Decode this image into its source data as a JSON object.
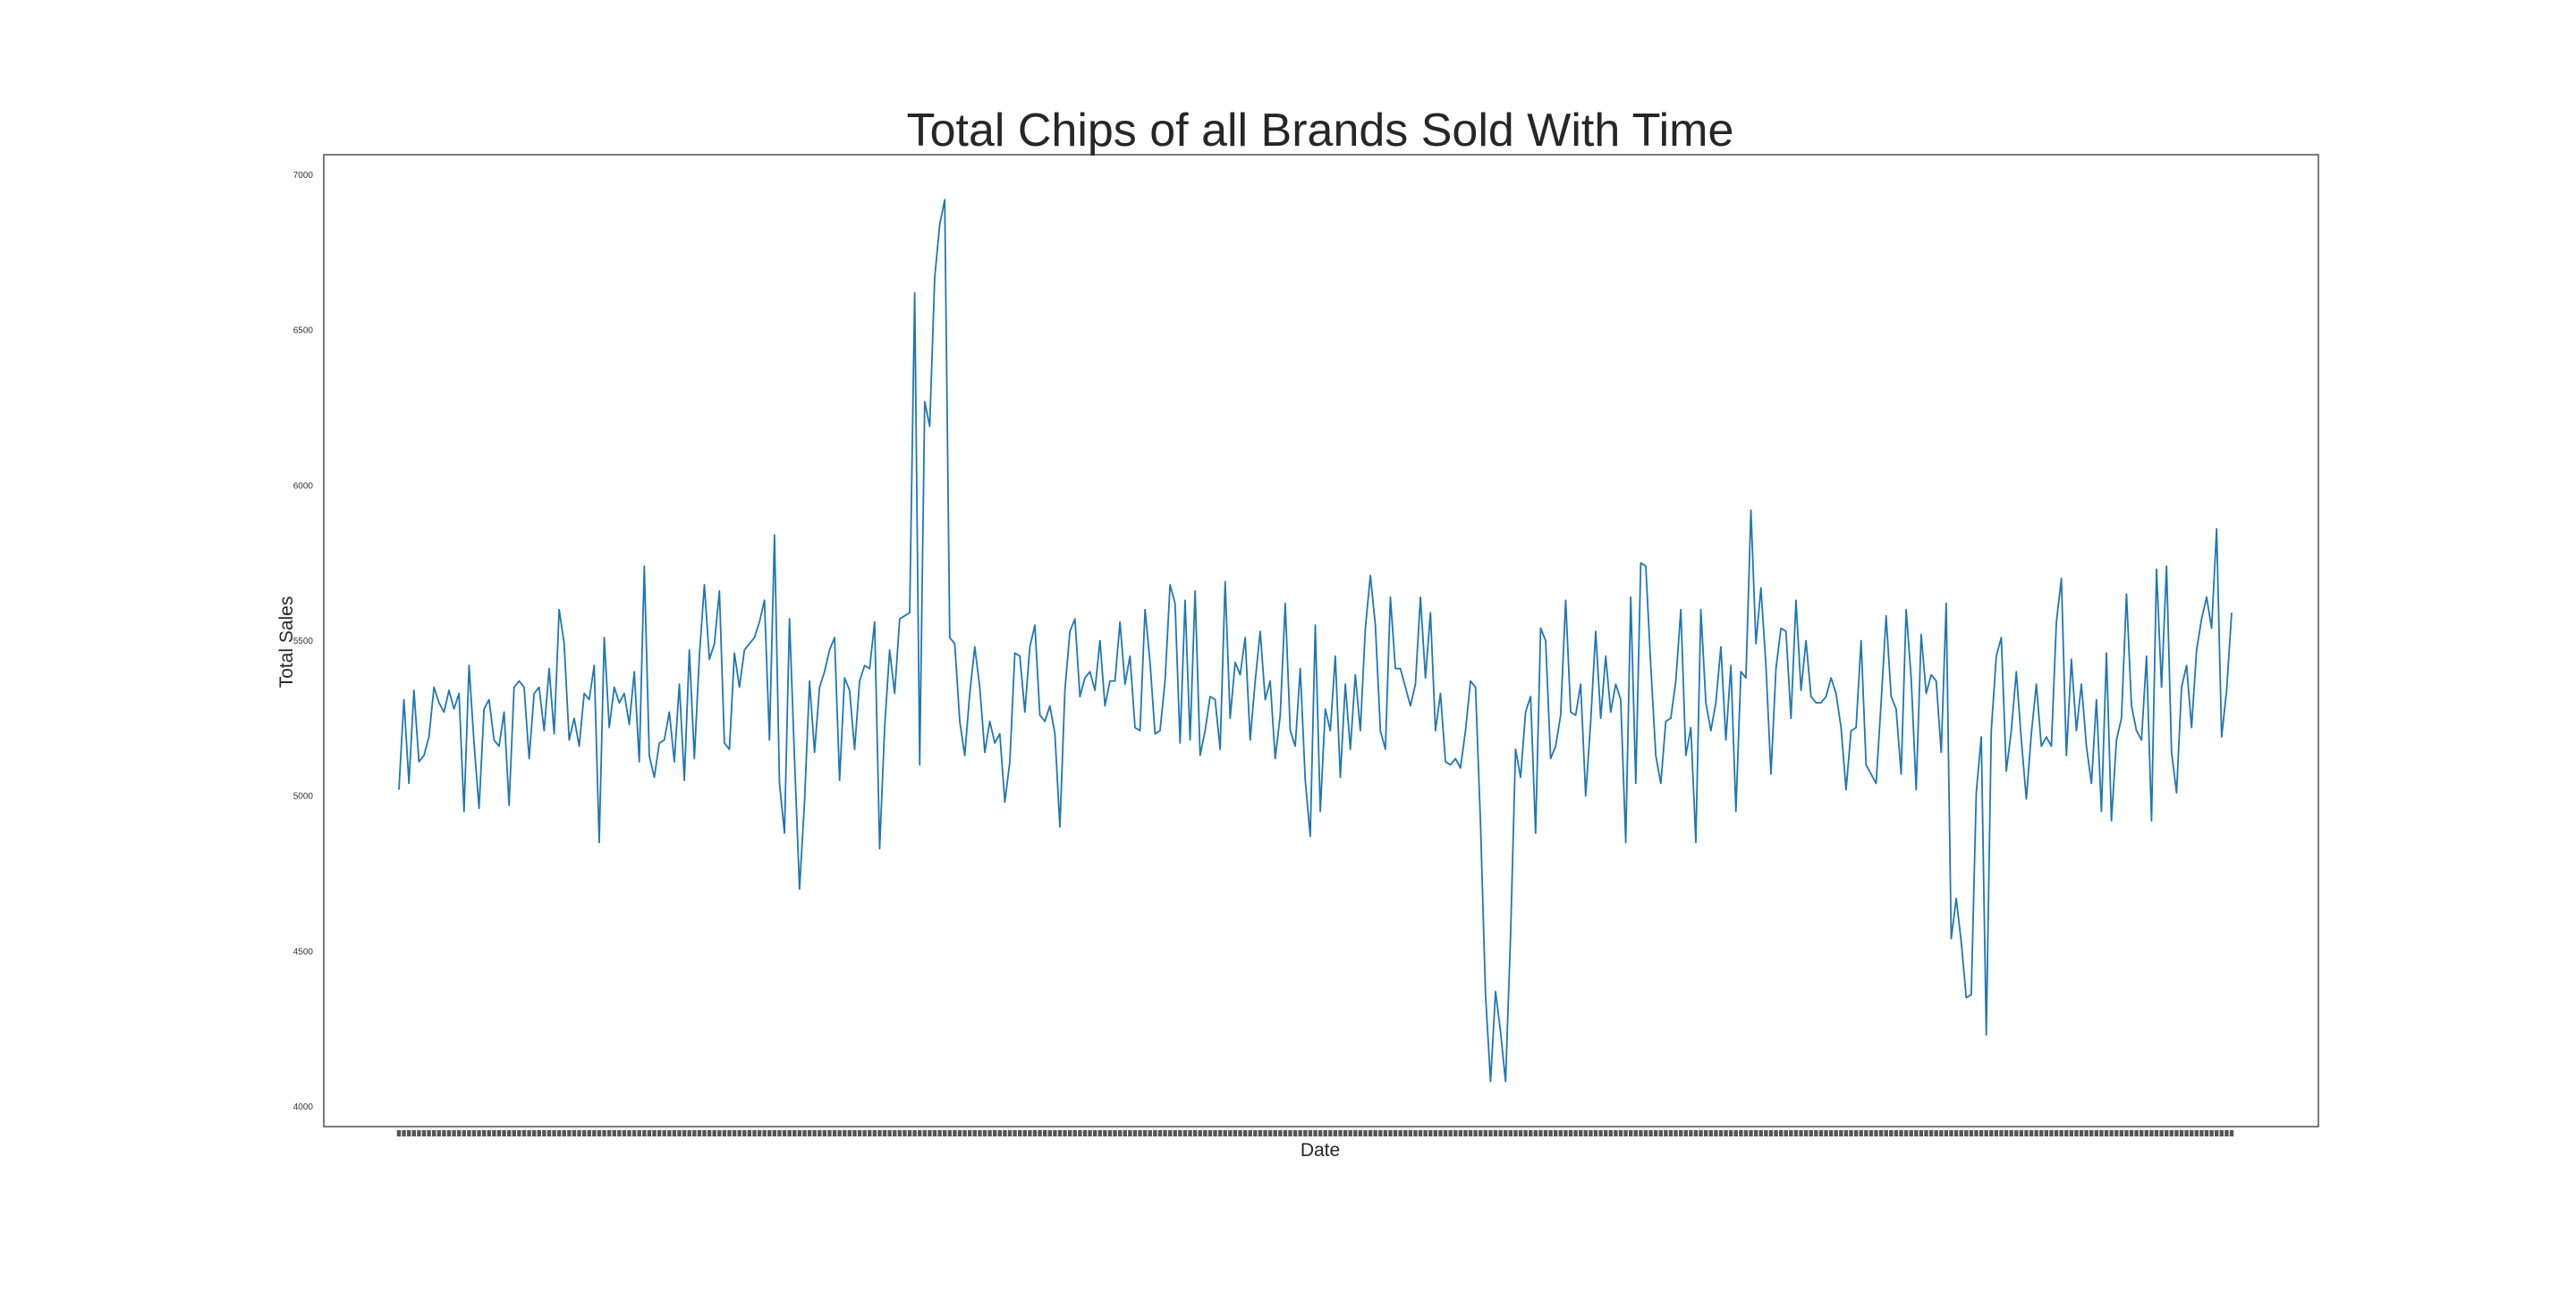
{
  "chart_data": {
    "type": "line",
    "title": "Total Chips of all Brands Sold With Time",
    "xlabel": "Date",
    "ylabel": "Total Sales",
    "ylim": [
      3935,
      7065
    ],
    "yticks": [
      4000,
      4500,
      5000,
      5500,
      6000,
      6500,
      7000
    ],
    "grid": false,
    "line_color": "#1f77b4",
    "x_note": "One point per consecutive day; the x tick labels overlap into an unreadable strip.",
    "series": [
      {
        "values": [
          5020,
          5310,
          5040,
          5340,
          5110,
          5130,
          5190,
          5350,
          5300,
          5270,
          5340,
          5280,
          5330,
          4950,
          5420,
          5170,
          4960,
          5280,
          5310,
          5180,
          5160,
          5270,
          4970,
          5350,
          5370,
          5350,
          5120,
          5330,
          5350,
          5210,
          5410,
          5200,
          5600,
          5490,
          5180,
          5250,
          5160,
          5330,
          5310,
          5420,
          4850,
          5510,
          5220,
          5350,
          5300,
          5330,
          5230,
          5400,
          5110,
          5740,
          5130,
          5060,
          5170,
          5180,
          5270,
          5110,
          5360,
          5050,
          5470,
          5120,
          5450,
          5680,
          5440,
          5490,
          5660,
          5170,
          5150,
          5460,
          5350,
          5470,
          5490,
          5510,
          5560,
          5630,
          5180,
          5840,
          5040,
          4880,
          5570,
          5120,
          4700,
          4980,
          5370,
          5140,
          5350,
          5400,
          5470,
          5510,
          5050,
          5380,
          5340,
          5150,
          5370,
          5420,
          5410,
          5560,
          4830,
          5220,
          5470,
          5330,
          5570,
          5580,
          5590,
          6620,
          5100,
          6270,
          6190,
          6670,
          6840,
          6920,
          5510,
          5490,
          5240,
          5130,
          5330,
          5480,
          5350,
          5140,
          5240,
          5170,
          5200,
          4980,
          5110,
          5460,
          5450,
          5270,
          5480,
          5550,
          5260,
          5240,
          5290,
          5200,
          4900,
          5340,
          5530,
          5570,
          5320,
          5380,
          5400,
          5340,
          5500,
          5290,
          5370,
          5370,
          5560,
          5360,
          5450,
          5220,
          5210,
          5600,
          5430,
          5200,
          5210,
          5370,
          5680,
          5620,
          5170,
          5630,
          5180,
          5660,
          5130,
          5210,
          5320,
          5310,
          5150,
          5690,
          5250,
          5430,
          5390,
          5510,
          5180,
          5370,
          5530,
          5310,
          5370,
          5120,
          5260,
          5620,
          5210,
          5160,
          5410,
          5050,
          4870,
          5550,
          4950,
          5280,
          5210,
          5450,
          5060,
          5360,
          5150,
          5390,
          5210,
          5540,
          5710,
          5550,
          5210,
          5150,
          5640,
          5410,
          5410,
          5350,
          5290,
          5360,
          5640,
          5380,
          5590,
          5210,
          5330,
          5110,
          5100,
          5120,
          5090,
          5210,
          5370,
          5350,
          4910,
          4360,
          4080,
          4370,
          4240,
          4080,
          4550,
          5150,
          5060,
          5270,
          5320,
          4880,
          5540,
          5500,
          5120,
          5160,
          5260,
          5630,
          5270,
          5260,
          5360,
          5000,
          5240,
          5530,
          5250,
          5450,
          5270,
          5360,
          5310,
          4850,
          5640,
          5040,
          5750,
          5740,
          5420,
          5130,
          5040,
          5240,
          5250,
          5370,
          5600,
          5130,
          5220,
          4850,
          5600,
          5300,
          5210,
          5300,
          5480,
          5180,
          5420,
          4950,
          5400,
          5380,
          5920,
          5490,
          5670,
          5420,
          5070,
          5410,
          5540,
          5530,
          5250,
          5630,
          5340,
          5500,
          5320,
          5300,
          5300,
          5320,
          5380,
          5330,
          5220,
          5020,
          5210,
          5220,
          5500,
          5100,
          5070,
          5040,
          5300,
          5580,
          5320,
          5280,
          5070,
          5600,
          5380,
          5020,
          5520,
          5330,
          5390,
          5370,
          5140,
          5620,
          4540,
          4670,
          4530,
          4350,
          4360,
          5010,
          5190,
          4230,
          5210,
          5450,
          5510,
          5080,
          5210,
          5400,
          5180,
          4990,
          5200,
          5360,
          5160,
          5190,
          5160,
          5560,
          5700,
          5130,
          5440,
          5210,
          5360,
          5160,
          5040,
          5310,
          4950,
          5460,
          4920,
          5180,
          5250,
          5650,
          5290,
          5210,
          5180,
          5450,
          4920,
          5730,
          5350,
          5740,
          5140,
          5010,
          5350,
          5420,
          5220,
          5470,
          5570,
          5640,
          5540,
          5860,
          5190,
          5340,
          5590
        ]
      }
    ]
  }
}
